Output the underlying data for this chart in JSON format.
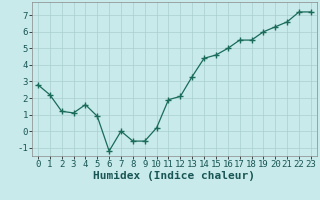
{
  "x": [
    0,
    1,
    2,
    3,
    4,
    5,
    6,
    7,
    8,
    9,
    10,
    11,
    12,
    13,
    14,
    15,
    16,
    17,
    18,
    19,
    20,
    21,
    22,
    23
  ],
  "y": [
    2.8,
    2.2,
    1.2,
    1.1,
    1.6,
    0.9,
    -1.2,
    0.0,
    -0.6,
    -0.6,
    0.2,
    1.9,
    2.1,
    3.3,
    4.4,
    4.6,
    5.0,
    5.5,
    5.5,
    6.0,
    6.3,
    6.6,
    7.2,
    7.2
  ],
  "xlabel": "Humidex (Indice chaleur)",
  "ylim": [
    -1.5,
    7.8
  ],
  "xlim": [
    -0.5,
    23.5
  ],
  "yticks": [
    -1,
    0,
    1,
    2,
    3,
    4,
    5,
    6,
    7
  ],
  "xticks": [
    0,
    1,
    2,
    3,
    4,
    5,
    6,
    7,
    8,
    9,
    10,
    11,
    12,
    13,
    14,
    15,
    16,
    17,
    18,
    19,
    20,
    21,
    22,
    23
  ],
  "line_color": "#1a6b5a",
  "marker_color": "#1a6b5a",
  "bg_color": "#c8eaea",
  "grid_color": "#aacece",
  "xlabel_fontsize": 8,
  "ytick_fontsize": 6.5,
  "xtick_fontsize": 6.5
}
